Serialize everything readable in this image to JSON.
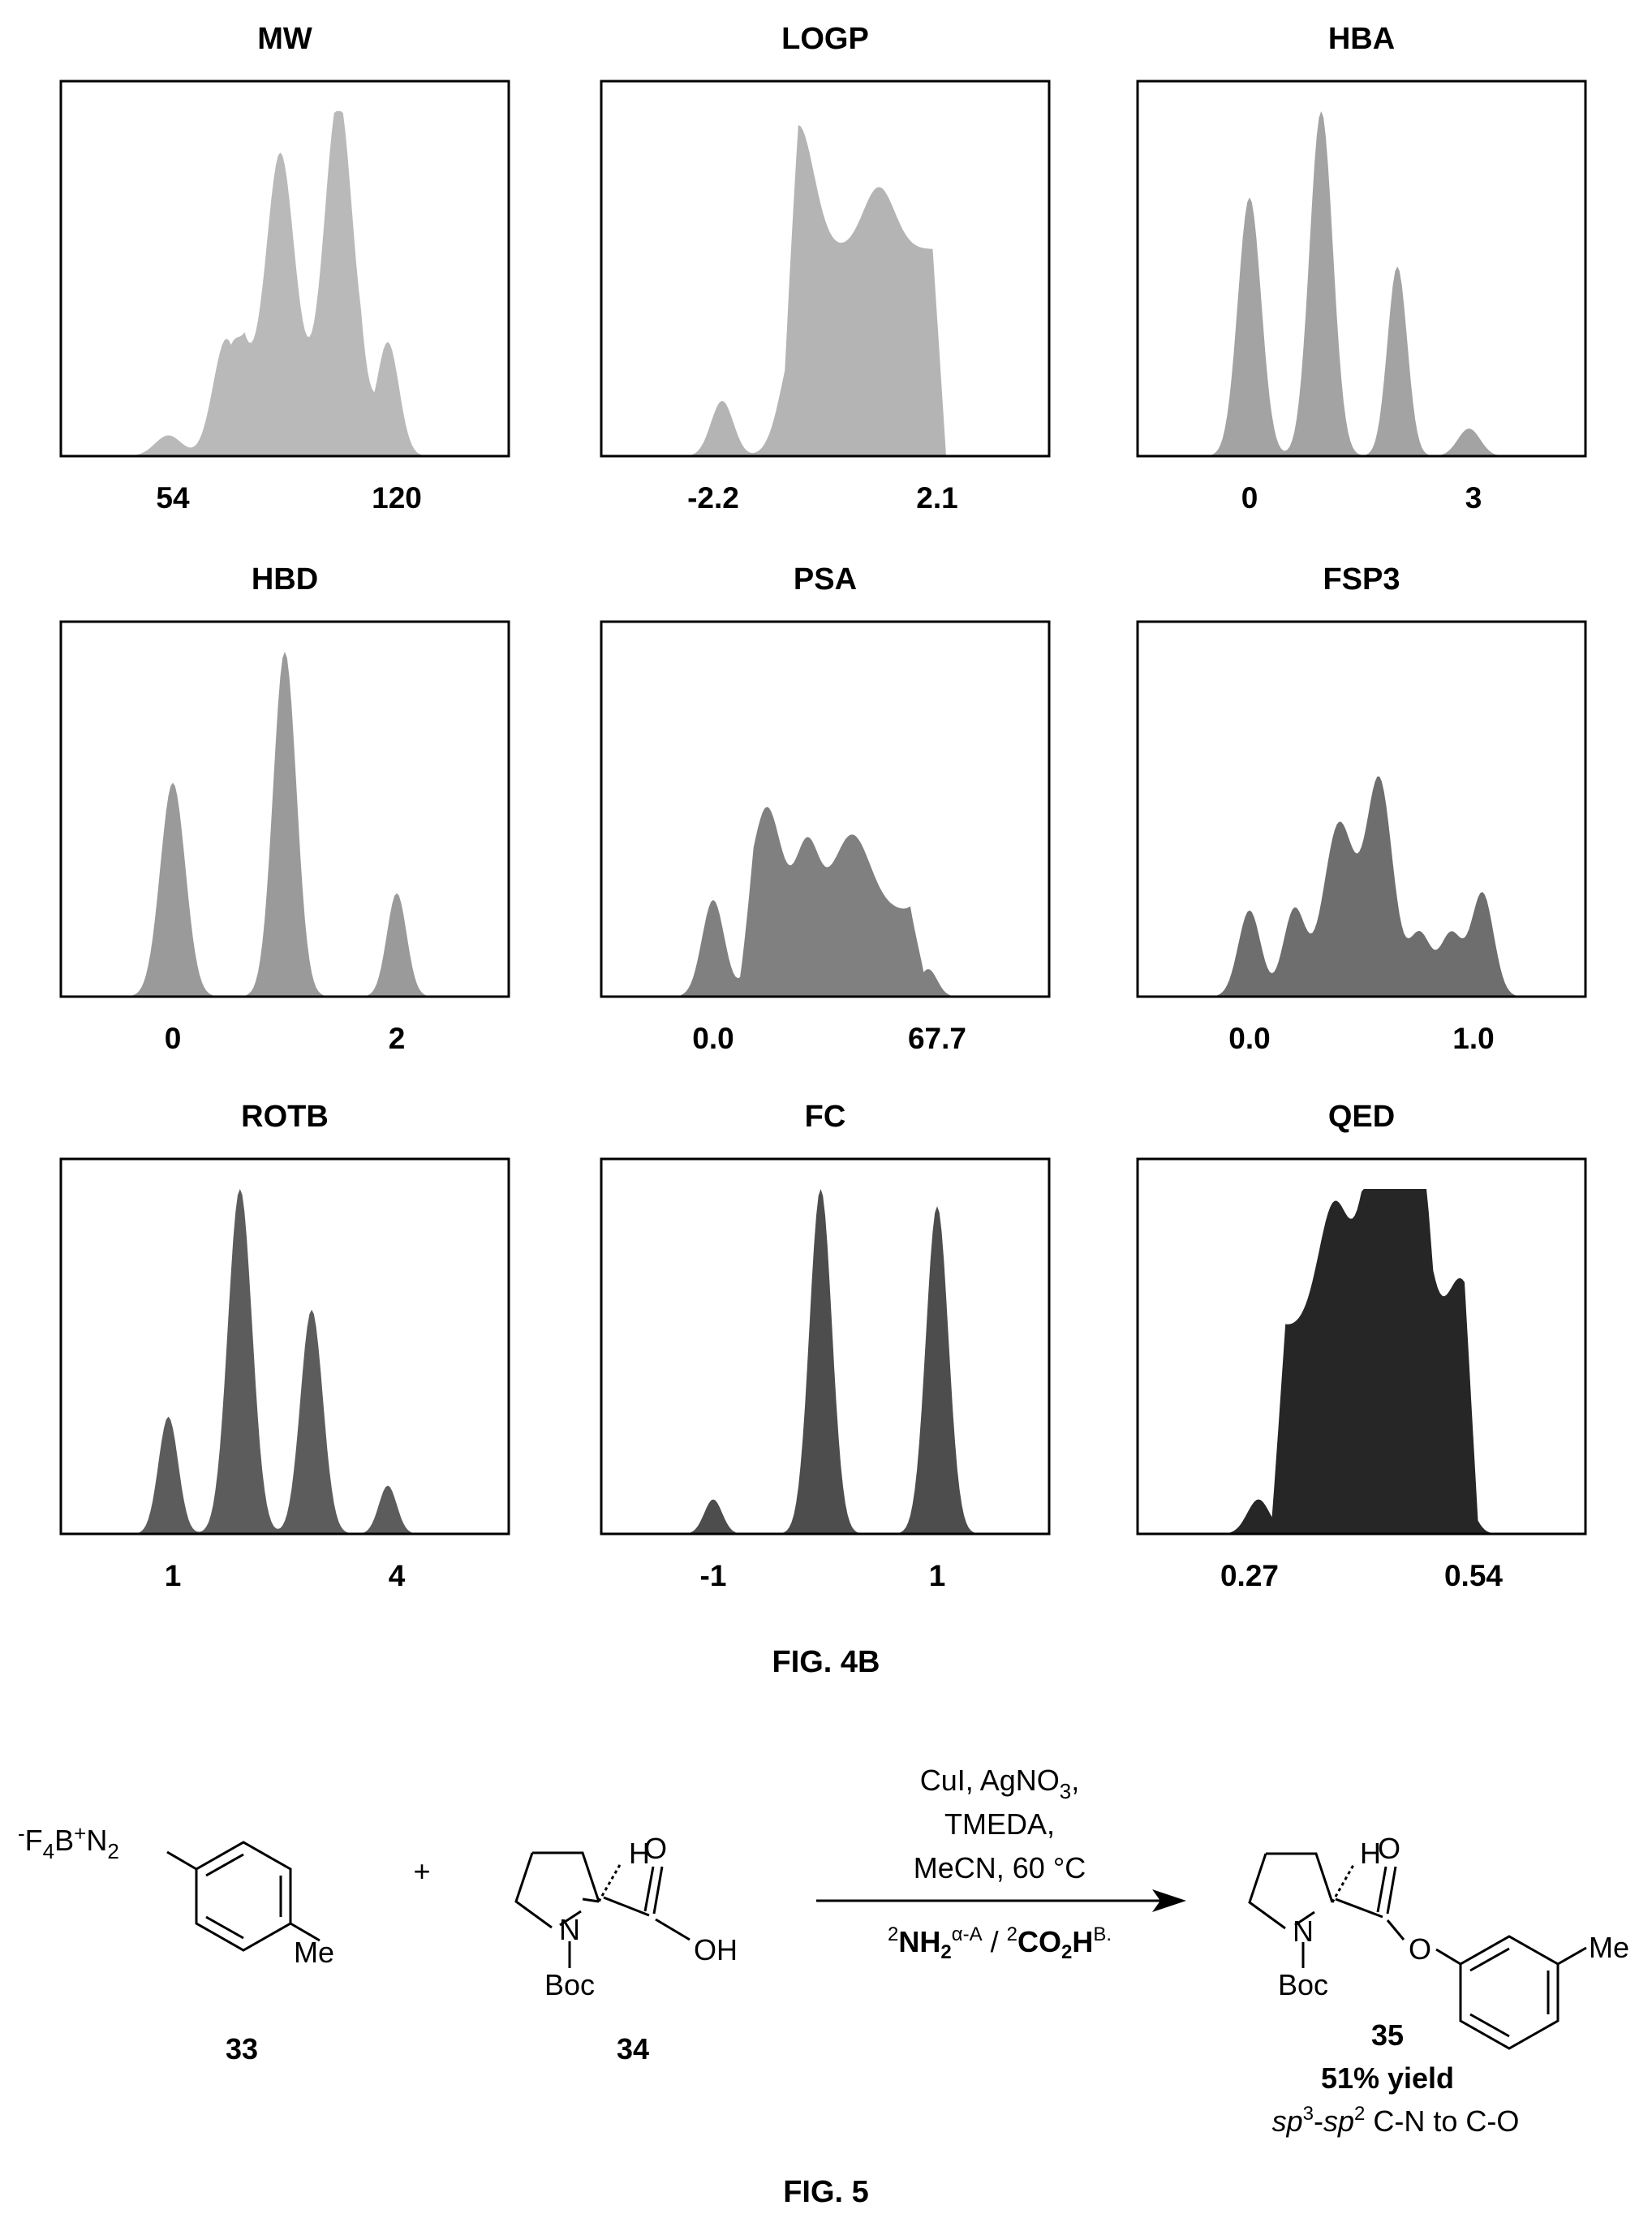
{
  "figure4b": {
    "label": "FIG. 4B",
    "chart_data": [
      {
        "type": "area",
        "title": "MW",
        "xticks": [
          "54",
          "120"
        ],
        "color": "#b9b9b9",
        "peaks": [
          [
            0.24,
            0.06,
            0.03
          ],
          [
            0.37,
            0.34,
            0.03
          ],
          [
            0.49,
            0.68,
            0.03
          ],
          [
            0.62,
            0.84,
            0.03
          ],
          [
            0.73,
            0.33,
            0.025
          ]
        ],
        "plateau": [
          [
            0.38,
            0.7,
            0.2
          ]
        ]
      },
      {
        "type": "area",
        "title": "LOGP",
        "xticks": [
          "-2.2",
          "2.1"
        ],
        "color": "#b4b4b4",
        "peaks": [
          [
            0.27,
            0.16,
            0.025
          ],
          [
            0.44,
            0.36,
            0.035
          ],
          [
            0.62,
            0.18,
            0.035
          ]
        ],
        "plateau": [
          [
            0.41,
            0.77,
            0.6
          ]
        ]
      },
      {
        "type": "area",
        "title": "HBA",
        "xticks": [
          "0",
          "3"
        ],
        "color": "#a3a3a3",
        "peaks": [
          [
            0.25,
            0.75,
            0.026
          ],
          [
            0.41,
            1.0,
            0.026
          ],
          [
            0.58,
            0.55,
            0.022
          ],
          [
            0.74,
            0.08,
            0.025
          ]
        ],
        "plateau": []
      },
      {
        "type": "area",
        "title": "HBD",
        "xticks": [
          "0",
          "2"
        ],
        "color": "#9a9a9a",
        "peaks": [
          [
            0.25,
            0.62,
            0.028
          ],
          [
            0.5,
            1.0,
            0.026
          ],
          [
            0.75,
            0.3,
            0.022
          ]
        ],
        "plateau": []
      },
      {
        "type": "area",
        "title": "PSA",
        "xticks": [
          "0.0",
          "67.7"
        ],
        "color": "#808080",
        "peaks": [
          [
            0.25,
            0.28,
            0.025
          ],
          [
            0.37,
            0.3,
            0.03
          ],
          [
            0.46,
            0.2,
            0.025
          ],
          [
            0.56,
            0.22,
            0.04
          ],
          [
            0.73,
            0.08,
            0.02
          ]
        ],
        "plateau": [
          [
            0.31,
            0.72,
            0.25
          ]
        ]
      },
      {
        "type": "area",
        "title": "FSP3",
        "xticks": [
          "0.0",
          "1.0"
        ],
        "color": "#6e6e6e",
        "peaks": [
          [
            0.25,
            0.25,
            0.025
          ],
          [
            0.35,
            0.25,
            0.025
          ],
          [
            0.45,
            0.5,
            0.035
          ],
          [
            0.54,
            0.62,
            0.03
          ],
          [
            0.63,
            0.18,
            0.025
          ],
          [
            0.7,
            0.18,
            0.025
          ],
          [
            0.77,
            0.3,
            0.025
          ]
        ],
        "plateau": []
      },
      {
        "type": "area",
        "title": "ROTB",
        "xticks": [
          "1",
          "4"
        ],
        "color": "#5c5c5c",
        "peaks": [
          [
            0.24,
            0.34,
            0.022
          ],
          [
            0.4,
            1.0,
            0.027
          ],
          [
            0.56,
            0.65,
            0.025
          ],
          [
            0.73,
            0.14,
            0.02
          ]
        ],
        "plateau": []
      },
      {
        "type": "area",
        "title": "FC",
        "xticks": [
          "-1",
          "1"
        ],
        "color": "#4d4d4d",
        "peaks": [
          [
            0.25,
            0.1,
            0.02
          ],
          [
            0.49,
            1.0,
            0.025
          ],
          [
            0.75,
            0.95,
            0.025
          ]
        ],
        "plateau": []
      },
      {
        "type": "area",
        "title": "QED",
        "xticks": [
          "0.27",
          "0.54"
        ],
        "color": "#262626",
        "peaks": [
          [
            0.27,
            0.1,
            0.025
          ],
          [
            0.44,
            0.36,
            0.035
          ],
          [
            0.53,
            0.51,
            0.03
          ],
          [
            0.62,
            0.38,
            0.03
          ],
          [
            0.72,
            0.14,
            0.025
          ]
        ],
        "plateau": [
          [
            0.3,
            0.76,
            0.6
          ],
          [
            0.5,
            0.66,
            0.3
          ]
        ]
      }
    ]
  },
  "reaction": {
    "reagent1": {
      "counterion": "F",
      "sub4": "4",
      "boron": "B",
      "diazo": "N",
      "sub2": "2",
      "methyl": "Me",
      "number": "33"
    },
    "plus": "+",
    "reagent2": {
      "stereo_h": "H",
      "carbonyl_o": "O",
      "hydroxyl": "OH",
      "n_atom": "N",
      "protecting": "Boc",
      "number": "34"
    },
    "conditions": {
      "line1": "CuI, AgNO",
      "line1_sub": "3",
      "line1_end": ",",
      "line2": "TMEDA,",
      "line3": "MeCN, 60 °C",
      "nh2_base": "NH",
      "nh2_sub": "2",
      "nh2_sup": "α-A",
      "sup_2a": "2",
      "sup_2b": "2",
      "slash": " / ",
      "co2h_a": "CO",
      "co2h_sub": "2",
      "co2h_b": "H",
      "co2h_sup": "B."
    },
    "product": {
      "stereo_h": "H",
      "carbonyl_o": "O",
      "ester_o": "O",
      "n_atom": "N",
      "protecting": "Boc",
      "methyl": "Me",
      "number": "35",
      "yield": "51% yield",
      "bond_sp3": "sp",
      "sup3": "3",
      "dash": "-",
      "bond_sp2": "sp",
      "sup2": "2",
      "bond_rest": " C-N to C-O"
    },
    "label": "FIG. 5"
  }
}
